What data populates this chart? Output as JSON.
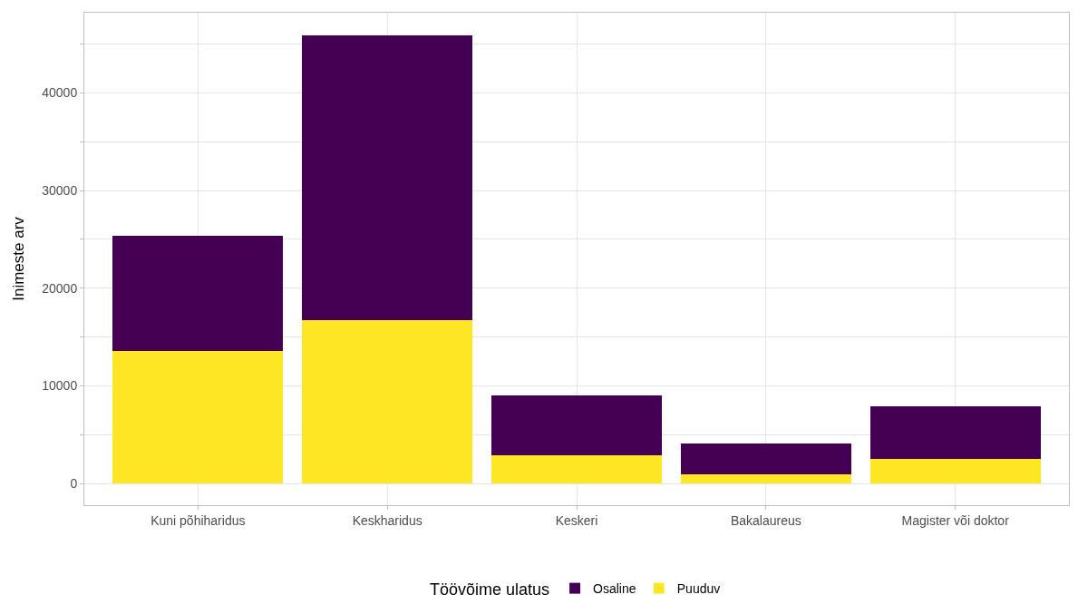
{
  "chart_data": {
    "type": "bar",
    "stacked": true,
    "ylabel": "Inimeste arv",
    "legend_title": "Töövõime ulatus",
    "legend": "bottom",
    "grid": true,
    "categories": [
      "Kuni põhiharidus",
      "Keskharidus",
      "Keskeri",
      "Bakalaureus",
      "Magister või doktor"
    ],
    "series": [
      {
        "name": "Puuduv",
        "color": "#fde725",
        "values": [
          13600,
          16700,
          2900,
          1000,
          2550
        ]
      },
      {
        "name": "Osaline",
        "color": "#440154",
        "values": [
          11800,
          29200,
          6100,
          3100,
          5350
        ]
      }
    ],
    "ylim": [
      -2200,
      48200
    ],
    "yticks": [
      0,
      {
        "value": 5000,
        "label": null
      },
      10000,
      {
        "value": 15000,
        "label": null
      },
      20000,
      {
        "value": 25000,
        "label": null
      },
      30000,
      {
        "value": 35000,
        "label": null
      },
      40000,
      {
        "value": 45000,
        "label": null
      }
    ]
  }
}
